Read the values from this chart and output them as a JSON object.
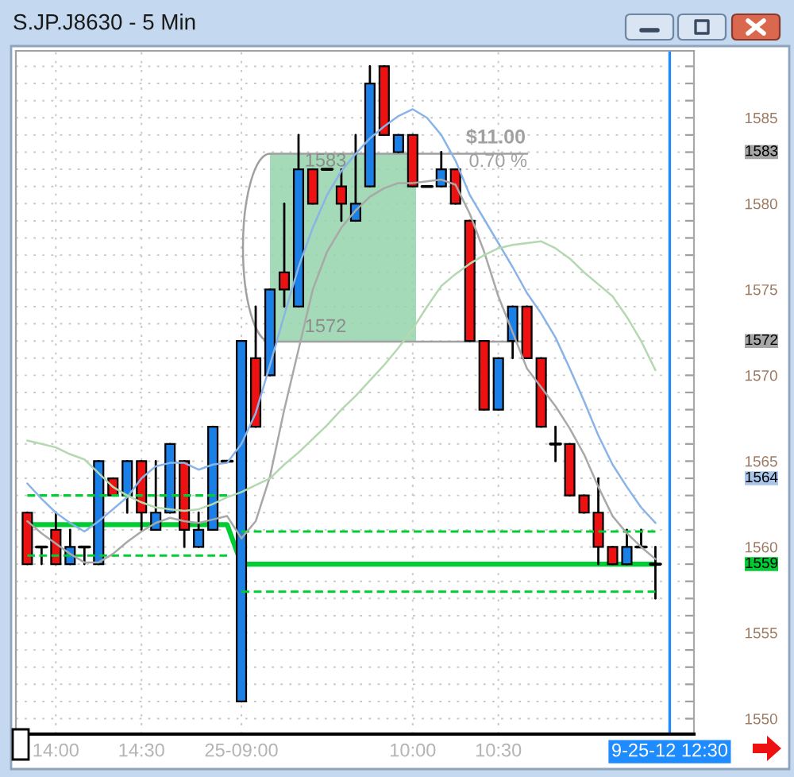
{
  "chart_data": {
    "type": "candlestick",
    "title": "S.JP.J8630 - 5 Min",
    "categories": [
      null,
      null,
      "14:00",
      null,
      null,
      null,
      null,
      null,
      "14:30",
      null,
      null,
      null,
      null,
      null,
      null,
      "25-09:00",
      null,
      null,
      null,
      null,
      null,
      null,
      null,
      null,
      null,
      null,
      null,
      "10:00",
      null,
      null,
      null,
      null,
      null,
      "10:30",
      null,
      null,
      null,
      null,
      null,
      null,
      null,
      null,
      null,
      null,
      null,
      "9-25-12 12:30"
    ],
    "ohlc": [
      [
        1562,
        1562,
        1559,
        1559
      ],
      [
        1560,
        1560,
        1559,
        1560
      ],
      [
        1561,
        1562,
        1559,
        1559
      ],
      [
        1559,
        1561,
        1559,
        1560
      ],
      [
        1560,
        1560,
        1559,
        1560
      ],
      [
        1559,
        1565,
        1559,
        1565
      ],
      [
        1564,
        1564,
        1563,
        1563
      ],
      [
        1563,
        1565,
        1562,
        1565
      ],
      [
        1565,
        1565,
        1561,
        1562
      ],
      [
        1561,
        1565,
        1561,
        1562
      ],
      [
        1562,
        1566,
        1562,
        1566
      ],
      [
        1565,
        1565,
        1560,
        1561
      ],
      [
        1560,
        1562,
        1560,
        1561
      ],
      [
        1561,
        1567,
        1561,
        1567
      ],
      [
        1565,
        1565,
        1565,
        1565
      ],
      [
        1551,
        1572,
        1551,
        1572
      ],
      [
        1571,
        1574,
        1567,
        1567
      ],
      [
        1570,
        1575,
        1570,
        1575
      ],
      [
        1576,
        1580,
        1574,
        1575
      ],
      [
        1574,
        1584,
        1574,
        1582
      ],
      [
        1582,
        1582,
        1580,
        1580
      ],
      [
        1582,
        1582,
        1582,
        1582
      ],
      [
        1581,
        1582,
        1579,
        1580
      ],
      [
        1579,
        1584,
        1579,
        1580
      ],
      [
        1581,
        1588,
        1581,
        1587
      ],
      [
        1588,
        1588,
        1584,
        1584
      ],
      [
        1583,
        1584,
        1583,
        1584
      ],
      [
        1584,
        1584,
        1581,
        1581
      ],
      [
        1581,
        1581,
        1581,
        1581
      ],
      [
        1581,
        1583,
        1581,
        1582
      ],
      [
        1582,
        1582,
        1580,
        1580
      ],
      [
        1579,
        1579,
        1572,
        1572
      ],
      [
        1572,
        1572,
        1568,
        1568
      ],
      [
        1568,
        1571,
        1568,
        1571
      ],
      [
        1572,
        1574,
        1571,
        1574
      ],
      [
        1574,
        1574,
        1571,
        1571
      ],
      [
        1571,
        1571,
        1567,
        1567
      ],
      [
        1566,
        1567,
        1565,
        1566
      ],
      [
        1566,
        1566,
        1563,
        1563
      ],
      [
        1563,
        1563,
        1562,
        1562
      ],
      [
        1562,
        1564,
        1559,
        1560
      ],
      [
        1560,
        1560,
        1559,
        1559
      ],
      [
        1559,
        1561,
        1559,
        1560
      ],
      [
        1560,
        1561,
        1560,
        1560
      ],
      [
        1559,
        1560,
        1557,
        1559
      ],
      null
    ],
    "colors": [
      "#ee1111",
      "#000000",
      "#ee1111",
      "#1a80e8",
      "#000000",
      "#1a80e8",
      "#ee1111",
      "#1a80e8",
      "#ee1111",
      "#1a80e8",
      "#1a80e8",
      "#ee1111",
      "#1a80e8",
      "#1a80e8",
      "#000000",
      "#1a80e8",
      "#ee1111",
      "#1a80e8",
      "#ee1111",
      "#1a80e8",
      "#ee1111",
      "#000000",
      "#ee1111",
      "#1a80e8",
      "#1a80e8",
      "#ee1111",
      "#1a80e8",
      "#ee1111",
      "#000000",
      "#1a80e8",
      "#ee1111",
      "#ee1111",
      "#ee1111",
      "#1a80e8",
      "#1a80e8",
      "#ee1111",
      "#ee1111",
      "#000000",
      "#ee1111",
      "#ee1111",
      "#ee1111",
      "#ee1111",
      "#1a80e8",
      "#000000",
      "#000000",
      null
    ],
    "series": [
      {
        "type": "line",
        "color": "#8ab4e8",
        "values": [
          1563.7,
          1562.8,
          1562.0,
          1561.4,
          1560.9,
          1561.5,
          1562.2,
          1562.9,
          1564.0,
          1564.7,
          1564.9,
          1564.9,
          1564.5,
          1564.8,
          1564.9,
          1566.0,
          1567.8,
          1570.6,
          1573.5,
          1576.3,
          1578.6,
          1580.5,
          1581.9,
          1582.9,
          1583.8,
          1584.5,
          1585.1,
          1585.5,
          1585.0,
          1584.0,
          1582.5,
          1580.5,
          1579.1,
          1577.7,
          1576.3,
          1574.8,
          1573.6,
          1572.2,
          1570.4,
          1568.5,
          1566.5,
          1564.8,
          1563.5,
          1562.3,
          1561.4,
          null
        ]
      },
      {
        "type": "line",
        "color": "#a8a8a8",
        "values": [
          1561.5,
          1560.8,
          1560.2,
          1559.6,
          1559.1,
          1559.1,
          1559.6,
          1560.3,
          1560.9,
          1561.4,
          1561.7,
          1561.5,
          1561.4,
          1561.6,
          1561.8,
          1560.5,
          1561.5,
          1564.1,
          1568.0,
          1571.5,
          1575.0,
          1577.2,
          1578.6,
          1579.6,
          1580.4,
          1580.9,
          1581.2,
          1581.2,
          1581.3,
          1581.4,
          1581.1,
          1579.4,
          1577.2,
          1574.6,
          1572.5,
          1570.4,
          1569.3,
          1568.2,
          1566.9,
          1565.4,
          1563.5,
          1561.8,
          1560.8,
          1560.0,
          1559.3,
          null
        ]
      },
      {
        "type": "line",
        "color": "#b4d8b0",
        "values": [
          1566.2,
          1566.0,
          1565.8,
          1565.4,
          1565.1,
          1564.3,
          1563.5,
          1563.0,
          1562.6,
          1562.3,
          1562.2,
          1562.1,
          1562.2,
          1562.5,
          1562.9,
          1563.2,
          1563.6,
          1564.0,
          1564.8,
          1565.5,
          1566.3,
          1567.1,
          1568.0,
          1568.8,
          1569.7,
          1570.6,
          1571.6,
          1572.7,
          1574.0,
          1575.2,
          1575.9,
          1576.5,
          1577.0,
          1577.4,
          1577.6,
          1577.7,
          1577.8,
          1577.4,
          1576.8,
          1576.0,
          1575.3,
          1574.6,
          1573.4,
          1572.0,
          1570.3,
          null
        ]
      },
      {
        "type": "line",
        "color": "#00cc33",
        "values": [
          1561.3,
          1561.3,
          1561.3,
          1561.3,
          1561.3,
          1561.3,
          1561.3,
          1561.3,
          1561.3,
          1561.3,
          1561.3,
          1561.3,
          1561.3,
          1561.3,
          1561.3,
          1559,
          1559,
          1559,
          1559,
          1559,
          1559,
          1559,
          1559,
          1559,
          1559,
          1559,
          1559,
          1559,
          1559,
          1559,
          1559,
          1559,
          1559,
          1559,
          1559,
          1559,
          1559,
          1559,
          1559,
          1559,
          1559,
          1559,
          1559,
          1559,
          1559,
          null
        ]
      },
      {
        "type": "line",
        "color": "#00cc33",
        "line_style": "dashed",
        "values": [
          1563.0,
          1563.0,
          1563.0,
          1563.0,
          1563.0,
          1563.0,
          1563.0,
          1563.0,
          1563.0,
          1563.0,
          1563.0,
          1563.0,
          1563.0,
          1563.0,
          1563.0,
          null,
          null,
          null,
          null,
          null,
          null,
          null,
          null,
          null,
          null,
          null,
          null,
          null,
          null,
          null,
          null,
          null,
          null,
          null,
          null,
          null,
          null,
          null,
          null,
          null,
          null,
          null,
          null,
          null,
          null,
          null
        ]
      },
      {
        "type": "line",
        "color": "#00cc33",
        "line_style": "dashed",
        "values": [
          null,
          null,
          null,
          null,
          null,
          null,
          null,
          null,
          null,
          null,
          null,
          null,
          null,
          null,
          null,
          1560.9,
          1560.9,
          1560.9,
          1560.9,
          1560.9,
          1560.9,
          1560.9,
          1560.9,
          1560.9,
          1560.9,
          1560.9,
          1560.9,
          1560.9,
          1560.9,
          1560.9,
          1560.9,
          1560.9,
          1560.9,
          1560.9,
          1560.9,
          1560.9,
          1560.9,
          1560.9,
          1560.9,
          1560.9,
          1560.9,
          1560.9,
          1560.9,
          1560.9,
          1560.9,
          null
        ]
      },
      {
        "type": "line",
        "color": "#00cc33",
        "line_style": "dashed",
        "values": [
          1559.5,
          1559.5,
          1559.5,
          1559.5,
          1559.5,
          1559.5,
          1559.5,
          1559.5,
          1559.5,
          1559.5,
          1559.5,
          1559.5,
          1559.5,
          1559.5,
          1559.5,
          null,
          null,
          null,
          null,
          null,
          null,
          null,
          null,
          null,
          null,
          null,
          null,
          null,
          null,
          null,
          null,
          null,
          null,
          null,
          null,
          null,
          null,
          null,
          null,
          null,
          null,
          null,
          null,
          null,
          null,
          null
        ]
      },
      {
        "type": "line",
        "color": "#00cc33",
        "line_style": "dashed",
        "values": [
          null,
          null,
          null,
          null,
          null,
          null,
          null,
          null,
          null,
          null,
          null,
          null,
          null,
          null,
          null,
          1557.4,
          1557.4,
          1557.4,
          1557.4,
          1557.4,
          1557.4,
          1557.4,
          1557.4,
          1557.4,
          1557.4,
          1557.4,
          1557.4,
          1557.4,
          1557.4,
          1557.4,
          1557.4,
          1557.4,
          1557.4,
          1557.4,
          1557.4,
          1557.4,
          1557.4,
          1557.4,
          1557.4,
          1557.4,
          1557.4,
          1557.4,
          1557.4,
          1557.4,
          1557.4,
          null
        ]
      }
    ],
    "ref_lines": [
      {
        "axis": "x",
        "value": "9-25-12 12:30",
        "color": "#1e8cff"
      }
    ],
    "annotations": [
      "1583",
      "1572",
      "$11.00",
      "0.70 %",
      "1583",
      "1572",
      "1564",
      "1559"
    ],
    "ylim": [
      1549.1,
      1588.9
    ],
    "yticks": [
      1550,
      {
        "value": 1551,
        "label": null
      },
      {
        "value": 1552,
        "label": null
      },
      {
        "value": 1553,
        "label": null
      },
      {
        "value": 1554,
        "label": null
      },
      1555,
      {
        "value": 1556,
        "label": null
      },
      {
        "value": 1557,
        "label": null
      },
      {
        "value": 1558,
        "label": null
      },
      {
        "value": 1559,
        "label": null
      },
      1560,
      {
        "value": 1561,
        "label": null
      },
      {
        "value": 1562,
        "label": null
      },
      {
        "value": 1563,
        "label": null
      },
      {
        "value": 1564,
        "label": null
      },
      1565,
      {
        "value": 1566,
        "label": null
      },
      {
        "value": 1567,
        "label": null
      },
      {
        "value": 1568,
        "label": null
      },
      {
        "value": 1569,
        "label": null
      },
      1570,
      {
        "value": 1571,
        "label": null
      },
      {
        "value": 1572,
        "label": null
      },
      {
        "value": 1573,
        "label": null
      },
      {
        "value": 1574,
        "label": null
      },
      1575,
      {
        "value": 1576,
        "label": null
      },
      {
        "value": 1577,
        "label": null
      },
      {
        "value": 1578,
        "label": null
      },
      {
        "value": 1579,
        "label": null
      },
      1580,
      {
        "value": 1581,
        "label": null
      },
      {
        "value": 1582,
        "label": null
      },
      {
        "value": 1583,
        "label": null
      },
      {
        "value": 1584,
        "label": null
      },
      1585,
      {
        "value": 1586,
        "label": null
      },
      {
        "value": 1587,
        "label": null
      },
      {
        "value": 1588,
        "label": null
      }
    ],
    "grid": true
  }
}
